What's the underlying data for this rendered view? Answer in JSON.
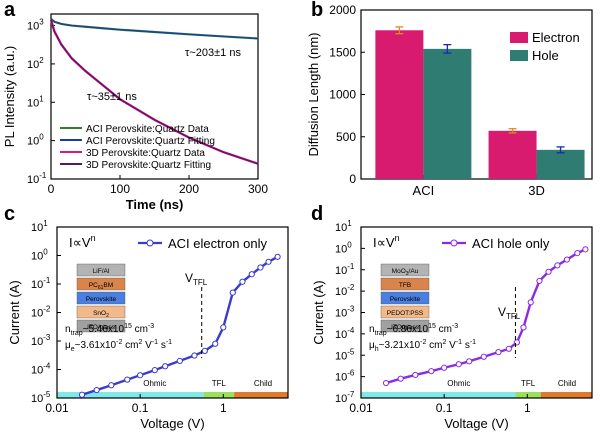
{
  "colors": {
    "aci_data": "#2e7d32",
    "aci_fit": "#1a3aa8",
    "d3_data": "#d81b7a",
    "d3_fit": "#4a1a6b",
    "electron": "#d81b6e",
    "hole": "#2f7d72",
    "ohmic": "#7fe8e8",
    "tfl": "#9be05a",
    "child": "#e07a2a",
    "sclc_c": "#3b3bcc",
    "sclc_d": "#8a2be2"
  },
  "chart_data": [
    {
      "panel": "a",
      "type": "line",
      "xlabel": "Time (ns)",
      "ylabel": "PL Intensity (a.u.)",
      "xlim": [
        0,
        300
      ],
      "ylim_log": [
        0.1,
        2000
      ],
      "yscale": "log",
      "xticks": [
        "0",
        "100",
        "200",
        "300"
      ],
      "yticks": [
        "10^-1",
        "10^0",
        "10^1",
        "10^2",
        "10^3"
      ],
      "annotations": [
        "τ~203±1 ns",
        "τ~35±1 ns"
      ],
      "legend": "bottom-right",
      "series": [
        {
          "name": "ACI Perovskite:Quartz Data",
          "x": [
            0,
            5,
            15,
            30,
            50,
            75,
            100,
            150,
            200,
            250,
            300
          ],
          "y": [
            1500,
            1250,
            1100,
            1000,
            930,
            850,
            780,
            680,
            590,
            520,
            460
          ]
        },
        {
          "name": "ACI Perovskite:Quartz Fitting",
          "x": [
            0,
            5,
            15,
            30,
            50,
            75,
            100,
            150,
            200,
            250,
            300
          ],
          "y": [
            1500,
            1250,
            1100,
            1000,
            930,
            850,
            780,
            680,
            590,
            520,
            460
          ]
        },
        {
          "name": "3D Perovskite:Quartz Data",
          "x": [
            0,
            5,
            15,
            30,
            50,
            75,
            100,
            150,
            200,
            250,
            300
          ],
          "y": [
            1400,
            700,
            320,
            140,
            65,
            28,
            12,
            3.5,
            1.2,
            0.5,
            0.25
          ]
        },
        {
          "name": "3D Perovskite:Quartz Fitting",
          "x": [
            0,
            5,
            15,
            30,
            50,
            75,
            100,
            150,
            200,
            250,
            300
          ],
          "y": [
            1400,
            700,
            320,
            140,
            65,
            28,
            12,
            3.5,
            1.2,
            0.5,
            0.25
          ]
        }
      ]
    },
    {
      "panel": "b",
      "type": "bar",
      "ylabel": "Diffusion Length (nm)",
      "categories": [
        "ACI",
        "3D"
      ],
      "ylim": [
        0,
        2000
      ],
      "yticks": [
        "0",
        "500",
        "1000",
        "1500",
        "2000"
      ],
      "legend": "top-right",
      "series": [
        {
          "name": "Electron",
          "values": [
            1760,
            570
          ],
          "errors": [
            40,
            25
          ]
        },
        {
          "name": "Hole",
          "values": [
            1540,
            345
          ],
          "errors": [
            50,
            35
          ]
        }
      ]
    },
    {
      "panel": "c",
      "type": "line",
      "xlabel": "Voltage (V)",
      "ylabel": "Current (A)",
      "xscale": "log",
      "yscale": "log",
      "xlim": [
        0.01,
        6
      ],
      "ylim_log": [
        1e-05,
        10
      ],
      "xticks": [
        "0.01",
        "0.1",
        "1"
      ],
      "yticks": [
        "10^-5",
        "10^-4",
        "10^-3",
        "10^-2",
        "10^-1",
        "10^0",
        "10^1"
      ],
      "legend": "top-right",
      "series": [
        {
          "name": "ACI electron only",
          "x": [
            0.02,
            0.03,
            0.045,
            0.07,
            0.1,
            0.15,
            0.2,
            0.3,
            0.45,
            0.6,
            0.8,
            1.0,
            1.3,
            1.7,
            2.2,
            2.8,
            3.5,
            4.5
          ],
          "y": [
            1.3e-05,
            1.9e-05,
            2.8e-05,
            4.4e-05,
            6.3e-05,
            9.5e-05,
            0.00013,
            0.0002,
            0.00031,
            0.00045,
            0.0008,
            0.003,
            0.05,
            0.12,
            0.22,
            0.38,
            0.6,
            0.9
          ]
        }
      ],
      "labels": {
        "formula_main": "I∝V",
        "formula_exp": "n",
        "vtfl_main": "V",
        "vtfl_sub": "TFL",
        "ntrap_main": "n",
        "ntrap_sub": "trap",
        "ntrap_val": "~5.46x10",
        "ntrap_exp": "15",
        "ntrap_unit": " cm",
        "ntrap_unit_exp": "-3",
        "mu_main": "μ",
        "mu_sub": "e",
        "mu_val": "~3.61x10",
        "mu_exp": "-2",
        "mu_unit": " cm",
        "mu_unit_exp": "2",
        "mu_unit2": " V",
        "mu_unit2_exp": "-1",
        "mu_unit3": " s",
        "mu_unit3_exp": "-1",
        "region_ohmic": "Ohmic",
        "region_tfl": "TFL",
        "region_child": "Child"
      },
      "device_layers": [
        {
          "label": "LiF/Al",
          "color": "#b3b3b3"
        },
        {
          "label": "PC",
          "sub": "61",
          "tail": "BM",
          "color": "#d9844a"
        },
        {
          "label": "Perovskite",
          "color": "#4a7fe0"
        },
        {
          "label": "SnO",
          "sub": "2",
          "tail": "",
          "color": "#f2b98a"
        },
        {
          "label": "ITO/glass",
          "color": "#a0a0a0"
        }
      ]
    },
    {
      "panel": "d",
      "type": "line",
      "xlabel": "Voltage (V)",
      "ylabel": "Current (A)",
      "xscale": "log",
      "yscale": "log",
      "xlim": [
        0.01,
        6
      ],
      "ylim_log": [
        1e-07,
        10
      ],
      "xticks": [
        "0.01",
        "0.1",
        "1"
      ],
      "yticks": [
        "10^-7",
        "10^-6",
        "10^-5",
        "10^-4",
        "10^-3",
        "10^-2",
        "10^-1",
        "10^0",
        "10^1"
      ],
      "legend": "top-right",
      "series": [
        {
          "name": "ACI hole only",
          "x": [
            0.02,
            0.03,
            0.045,
            0.07,
            0.1,
            0.15,
            0.2,
            0.3,
            0.45,
            0.6,
            0.75,
            0.9,
            1.1,
            1.4,
            1.8,
            2.3,
            3.0,
            4.0,
            5.0
          ],
          "y": [
            5e-07,
            8e-07,
            1.2e-06,
            1.8e-06,
            2.6e-06,
            3.8e-06,
            5.2e-06,
            8.5e-06,
            1.4e-05,
            2e-05,
            4e-05,
            0.0002,
            0.003,
            0.03,
            0.08,
            0.16,
            0.3,
            0.6,
            0.9
          ]
        }
      ],
      "labels": {
        "formula_main": "I∝V",
        "formula_exp": "n",
        "vtfl_main": "V",
        "vtfl_sub": "TFL",
        "ntrap_main": "n",
        "ntrap_sub": "trap",
        "ntrap_val": "~6.86x10",
        "ntrap_exp": "15",
        "ntrap_unit": " cm",
        "ntrap_unit_exp": "-3",
        "mu_main": "μ",
        "mu_sub": "h",
        "mu_val": "~3.21x10",
        "mu_exp": "-2",
        "mu_unit": " cm",
        "mu_unit_exp": "2",
        "mu_unit2": " V",
        "mu_unit2_exp": "-1",
        "mu_unit3": " s",
        "mu_unit3_exp": "-1",
        "region_ohmic": "Ohmic",
        "region_tfl": "TFL",
        "region_child": "Child"
      },
      "device_layers": [
        {
          "label": "MoO",
          "sub": "3",
          "tail": "/Au",
          "color": "#b3b3b3"
        },
        {
          "label": "TFB",
          "color": "#d9844a"
        },
        {
          "label": "Perovskite",
          "color": "#4a7fe0"
        },
        {
          "label": "PEDOT:PSS",
          "color": "#f2b98a"
        },
        {
          "label": "ITO/glass",
          "color": "#a0a0a0"
        }
      ]
    }
  ],
  "panel_letters": [
    "a",
    "b",
    "c",
    "d"
  ]
}
